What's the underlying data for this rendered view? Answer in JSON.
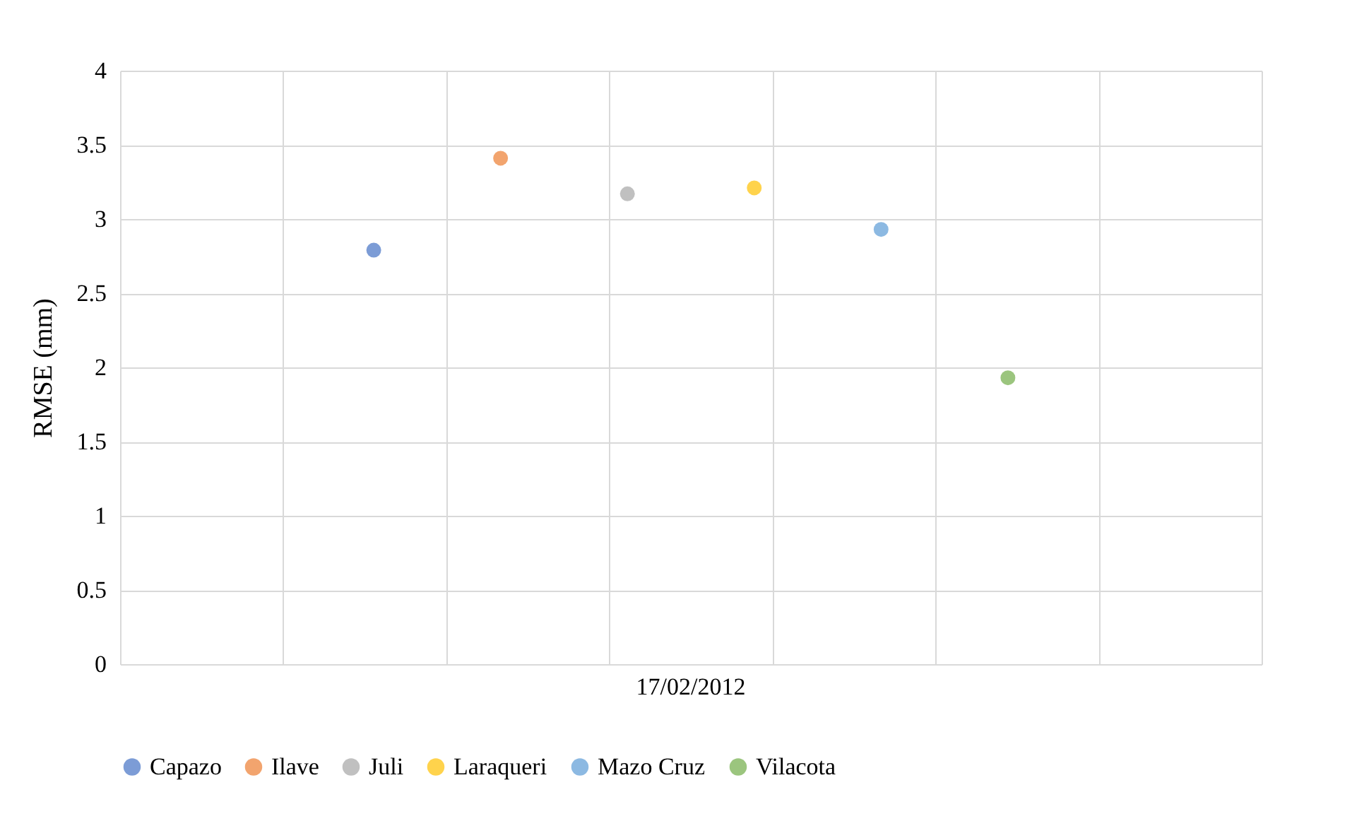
{
  "chart_data": {
    "type": "scatter",
    "categories": [
      "17/02/2012"
    ],
    "ylabel": "RMSE (mm)",
    "ylim": [
      0,
      4
    ],
    "yticks": [
      0,
      0.5,
      1,
      1.5,
      2,
      2.5,
      3,
      3.5,
      4
    ],
    "grid": true,
    "legend": "bottom",
    "marker": "circle",
    "series": [
      {
        "name": "Capazo",
        "color": "#4472c4",
        "values": [
          2.79
        ]
      },
      {
        "name": "Ilave",
        "color": "#ed7d31",
        "values": [
          3.41
        ]
      },
      {
        "name": "Juli",
        "color": "#a5a5a5",
        "values": [
          3.17
        ]
      },
      {
        "name": "Laraqueri",
        "color": "#ffc000",
        "values": [
          3.21
        ]
      },
      {
        "name": "Mazo Cruz",
        "color": "#5b9bd5",
        "values": [
          2.93
        ]
      },
      {
        "name": "Vilacota",
        "color": "#70ad47",
        "values": [
          1.93
        ]
      }
    ]
  }
}
